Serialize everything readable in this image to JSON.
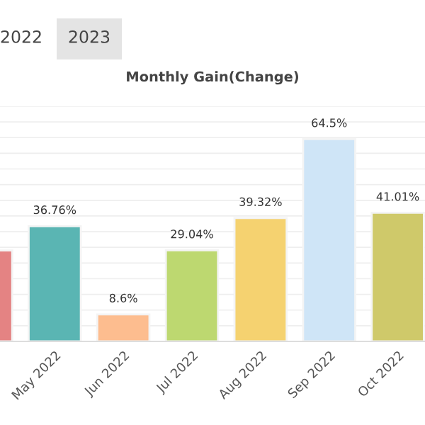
{
  "chart_data": {
    "type": "bar",
    "title": "Monthly Gain(Change)",
    "categories": [
      null,
      "May 2022",
      "Jun 2022",
      "Jul 2022",
      "Aug 2022",
      "Sep 2022",
      "Oct 2022"
    ],
    "values": [
      29,
      36.76,
      8.6,
      29.04,
      39.32,
      64.5,
      41.01
    ],
    "value_labels": [
      null,
      "36.76%",
      "8.6%",
      "29.04%",
      "39.32%",
      "64.5%",
      "41.01%"
    ],
    "colors": [
      "#e48383",
      "#5ab5b3",
      "#fdbd8f",
      "#bdd870",
      "#f5d270",
      "#cfe5f7",
      "#cfc96a"
    ],
    "ylim": [
      0,
      75
    ],
    "yticks": [
      {
        "value": 0,
        "label": null
      },
      {
        "value": 5,
        "label": null
      },
      {
        "value": 10,
        "label": null
      },
      {
        "value": 15,
        "label": null
      },
      {
        "value": 20,
        "label": null
      },
      {
        "value": 25,
        "label": null
      },
      {
        "value": 30,
        "label": null
      },
      {
        "value": 35,
        "label": null
      },
      {
        "value": 40,
        "label": null
      },
      {
        "value": 45,
        "label": null
      },
      {
        "value": 50,
        "label": null
      },
      {
        "value": 55,
        "label": null
      },
      {
        "value": 60,
        "label": null
      },
      {
        "value": 65,
        "label": null
      },
      {
        "value": 70,
        "label": null
      },
      {
        "value": 75,
        "label": null
      }
    ],
    "grid": "y",
    "tick_labels": "x",
    "annotations": [
      "2022",
      "2023"
    ]
  }
}
